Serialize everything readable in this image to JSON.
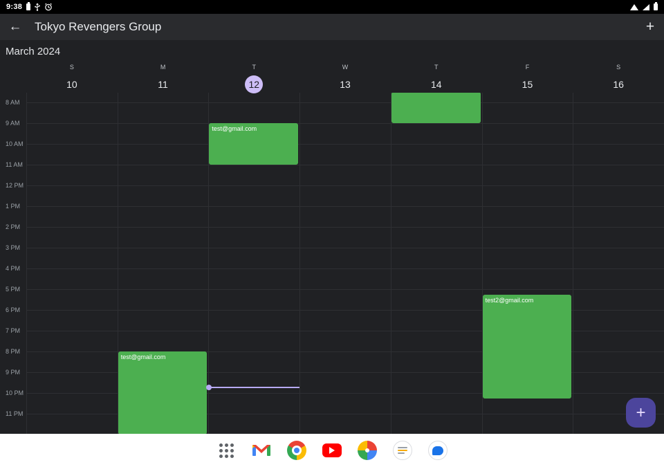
{
  "status_bar": {
    "time": "9:38",
    "left_icons": [
      "battery-notification-icon",
      "usb-icon",
      "alarm-icon"
    ],
    "right_icons": [
      "wifi-icon",
      "signal-icon",
      "battery-icon"
    ]
  },
  "app_bar": {
    "back_icon": "←",
    "title": "Tokyo Revengers Group",
    "add_icon": "+"
  },
  "calendar": {
    "month_label": "March 2024",
    "days": [
      {
        "letter": "S",
        "number": "10",
        "today": false
      },
      {
        "letter": "M",
        "number": "11",
        "today": false
      },
      {
        "letter": "T",
        "number": "12",
        "today": true
      },
      {
        "letter": "W",
        "number": "13",
        "today": false
      },
      {
        "letter": "T",
        "number": "14",
        "today": false
      },
      {
        "letter": "F",
        "number": "15",
        "today": false
      },
      {
        "letter": "S",
        "number": "16",
        "today": false
      }
    ],
    "hours": [
      "8 AM",
      "9 AM",
      "10 AM",
      "11 AM",
      "12 PM",
      "1 PM",
      "2 PM",
      "3 PM",
      "4 PM",
      "5 PM",
      "6 PM",
      "7 PM",
      "8 PM",
      "9 PM",
      "10 PM",
      "11 PM"
    ],
    "events": [
      {
        "day": 1,
        "label": "test@gmail.com",
        "start": 20,
        "end": 24
      },
      {
        "day": 2,
        "label": "test@gmail.com",
        "start": 9,
        "end": 11
      },
      {
        "day": 4,
        "label": "",
        "start": 7.5,
        "end": 9
      },
      {
        "day": 5,
        "label": "test2@gmail.com",
        "start": 17.25,
        "end": 22.25
      }
    ],
    "now_indicator": {
      "day": 2,
      "time": 21.7
    },
    "colors": {
      "event": "#4caf50",
      "today_circle": "#cdbdf7",
      "now_line": "#b7aaf3"
    }
  },
  "fab": {
    "icon": "+"
  },
  "dock": {
    "icons": [
      "app-grid",
      "gmail",
      "chrome",
      "youtube",
      "photos",
      "notes",
      "messages"
    ]
  }
}
